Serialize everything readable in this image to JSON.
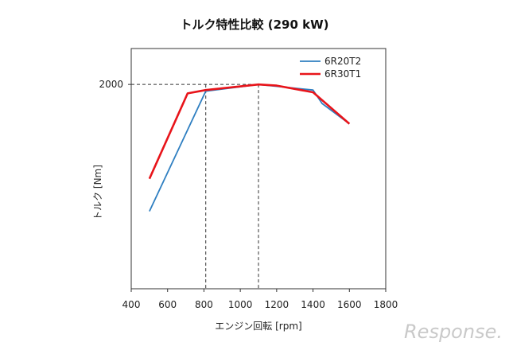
{
  "chart_data": {
    "type": "line",
    "title": "トルク特性比較 (290 kW)",
    "xlabel": "エンジン回転 [rpm]",
    "ylabel": "トルク [Nm]",
    "xlim": [
      400,
      1800
    ],
    "xticks": [
      "400",
      "600",
      "800",
      "1000",
      "1200",
      "1400",
      "1600",
      "1800"
    ],
    "ylim": [
      1090,
      2160
    ],
    "yticks": [
      "2000"
    ],
    "grid": false,
    "legend_position": "top-right",
    "reference_lines": {
      "y": 2000,
      "x": [
        810,
        1100
      ]
    },
    "series": [
      {
        "name": "6R20T2",
        "color": "#2f7fc1",
        "x": [
          500,
          810,
          1100,
          1400,
          1450,
          1600
        ],
        "y": [
          1435,
          1970,
          2000,
          1975,
          1915,
          1825
        ]
      },
      {
        "name": "6R30T1",
        "color": "#e8141a",
        "x": [
          500,
          710,
          810,
          1100,
          1200,
          1400,
          1600
        ],
        "y": [
          1580,
          1960,
          1975,
          2000,
          1995,
          1965,
          1825
        ]
      }
    ]
  },
  "watermark": "Response."
}
